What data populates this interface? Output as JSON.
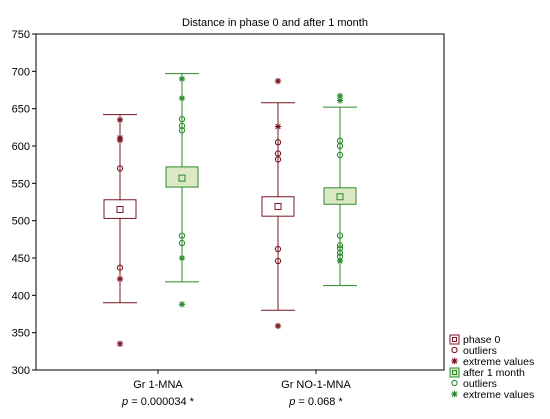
{
  "chart_data": {
    "type": "boxplot",
    "title": "Distance in phase 0 and after 1 month",
    "xlabel": "",
    "ylabel": "",
    "ylim": [
      300,
      750
    ],
    "yticks": [
      300,
      350,
      400,
      450,
      500,
      550,
      600,
      650,
      700,
      750
    ],
    "grid": false,
    "legend_position": "bottom-right",
    "categories": [
      {
        "label": "Gr 1-MNA",
        "p_prefix": "p",
        "p_text": " = 0.000034 *"
      },
      {
        "label": "Gr NO-1-MNA",
        "p_prefix": "p",
        "p_text": " = 0.068 *"
      }
    ],
    "series": [
      {
        "name": "phase 0",
        "outliers_label": "outliers",
        "extremes_label": "extreme values",
        "color": "#7a1520",
        "fill": "#ffffff",
        "boxes": [
          {
            "whisker_low": 390,
            "q1": 503,
            "median": 515,
            "q3": 528,
            "whisker_high": 642,
            "outliers": [
              570,
              437
            ],
            "extremes": [
              635,
              611,
              608,
              422,
              335
            ]
          },
          {
            "whisker_low": 380,
            "q1": 506,
            "median": 519,
            "q3": 532,
            "whisker_high": 658,
            "outliers": [
              605,
              590,
              582,
              462,
              446
            ],
            "extremes": [
              687,
              626,
              359
            ]
          }
        ]
      },
      {
        "name": "after 1 month",
        "outliers_label": "outliers",
        "extremes_label": "extreme values",
        "color": "#2a8a2a",
        "fill": "#dde8c4",
        "boxes": [
          {
            "whisker_low": 418,
            "q1": 545,
            "median": 557,
            "q3": 572,
            "whisker_high": 697,
            "outliers": [
              636,
              627,
              621,
              480,
              470
            ],
            "extremes": [
              690,
              664,
              450,
              388
            ]
          },
          {
            "whisker_low": 413,
            "q1": 522,
            "median": 532,
            "q3": 544,
            "whisker_high": 652,
            "outliers": [
              607,
              600,
              588,
              480,
              467,
              463,
              457,
              452
            ],
            "extremes": [
              667,
              661,
              446
            ]
          }
        ]
      }
    ]
  }
}
